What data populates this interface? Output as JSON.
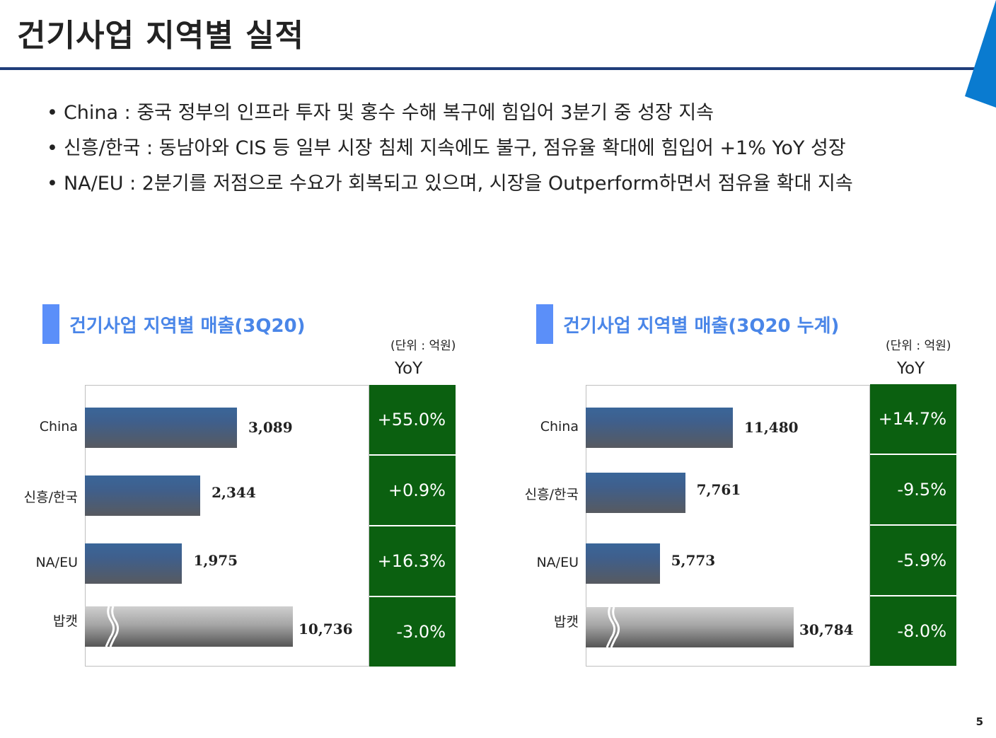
{
  "page": {
    "title": "건기사업 지역별 실적",
    "page_number": "5",
    "accent_color": "#1f3d7a",
    "corner_color": "#0a7bd0"
  },
  "bullets": [
    "China : 중국 정부의 인프라 투자 및 홍수 수해 복구에 힘입어 3분기 중 성장 지속",
    "신흥/한국 : 동남아와 CIS 등 일부 시장 침체 지속에도 불구, 점유율 확대에 힘입어 +1% YoY 성장",
    "NA/EU : 2분기를 저점으로 수요가 회복되고 있으며, 시장을 Outperform하면서 점유율 확대 지속"
  ],
  "chart_data": [
    {
      "type": "bar",
      "orientation": "horizontal",
      "title": "건기사업 지역별 매출(3Q20)",
      "unit": "(단위 : 억원)",
      "yoy_header": "YoY",
      "categories": [
        "China",
        "신흥/한국",
        "NA/EU",
        "밥캣"
      ],
      "values": [
        3089,
        2344,
        1975,
        10736
      ],
      "value_labels": [
        "3,089",
        "2,344",
        "1,975",
        "10,736"
      ],
      "yoy": [
        "+55.0%",
        "+0.9%",
        "+16.3%",
        "-3.0%"
      ],
      "axis_break_category": "밥캣",
      "bar_colors": [
        "#3a6699",
        "#3a6699",
        "#3a6699",
        "#a6a6a6"
      ],
      "yoy_color": "#0b6010"
    },
    {
      "type": "bar",
      "orientation": "horizontal",
      "title": "건기사업 지역별 매출(3Q20 누계)",
      "unit": "(단위 : 억원)",
      "yoy_header": "YoY",
      "categories": [
        "China",
        "신흥/한국",
        "NA/EU",
        "밥캣"
      ],
      "values": [
        11480,
        7761,
        5773,
        30784
      ],
      "value_labels": [
        "11,480",
        "7,761",
        "5,773",
        "30,784"
      ],
      "yoy": [
        "+14.7%",
        "-9.5%",
        "-5.9%",
        "-8.0%"
      ],
      "axis_break_category": "밥캣",
      "bar_colors": [
        "#3a6699",
        "#3a6699",
        "#3a6699",
        "#a6a6a6"
      ],
      "yoy_color": "#0b6010"
    }
  ]
}
